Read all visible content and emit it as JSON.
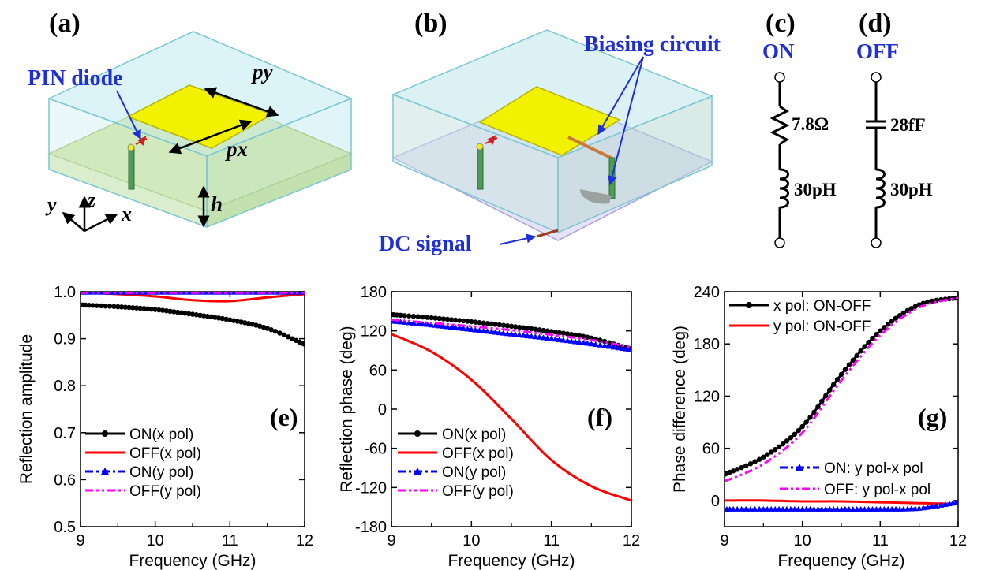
{
  "top_panels": {
    "a": {
      "label": "(a)",
      "pin_diode": "PIN diode",
      "dim_py": "py",
      "dim_px": "px",
      "dim_h": "h",
      "axis_x": "x",
      "axis_y": "y",
      "axis_z": "z"
    },
    "b": {
      "label": "(b)",
      "biasing": "Biasing circuit",
      "dc_signal": "DC signal"
    },
    "c": {
      "label": "(c)",
      "state": "ON",
      "resistor": "7.8Ω",
      "inductor": "30pH"
    },
    "d": {
      "label": "(d)",
      "state": "OFF",
      "capacitor": "28fF",
      "inductor": "30pH"
    }
  },
  "colors": {
    "on_x": "#000000",
    "off_x": "#ff0000",
    "on_y": "#0000ff",
    "off_y": "#ff00ff",
    "label_blue": "#1f2fd6",
    "substrate": "#9fdde6",
    "ground": "#d9e98a",
    "patch": "#f2f200"
  },
  "chart_data": [
    {
      "type": "line",
      "panel_label": "(e)",
      "xlabel": "Frequency (GHz)",
      "ylabel": "Reflection amplitude",
      "xlim": [
        9,
        12
      ],
      "ylim": [
        0.5,
        1.0
      ],
      "xticks": [
        "9",
        "10",
        "11",
        "12"
      ],
      "yticks": [
        "0.5",
        "0.6",
        "0.7",
        "0.8",
        "0.9",
        "1.0"
      ],
      "legend": "bottom-left",
      "x": [
        9.0,
        9.5,
        10.0,
        10.5,
        11.0,
        11.5,
        12.0
      ],
      "series": [
        {
          "name": "ON(x pol)",
          "style": "line-circle",
          "values": [
            0.972,
            0.968,
            0.962,
            0.952,
            0.94,
            0.922,
            0.888
          ]
        },
        {
          "name": "OFF(x pol)",
          "style": "line",
          "values": [
            0.998,
            0.995,
            0.99,
            0.982,
            0.98,
            0.988,
            0.995
          ]
        },
        {
          "name": "ON(y pol)",
          "style": "dashdot-triangle",
          "values": [
            0.999,
            0.999,
            0.999,
            0.999,
            0.999,
            0.999,
            0.999
          ]
        },
        {
          "name": "OFF(y pol)",
          "style": "dashdotdot",
          "values": [
            0.998,
            0.998,
            0.998,
            0.998,
            0.998,
            0.998,
            0.998
          ]
        }
      ]
    },
    {
      "type": "line",
      "panel_label": "(f)",
      "xlabel": "Frequency (GHz)",
      "ylabel": "Reflection phase (deg)",
      "xlim": [
        9,
        12
      ],
      "ylim": [
        -180,
        180
      ],
      "xticks": [
        "9",
        "10",
        "11",
        "12"
      ],
      "yticks": [
        "-180",
        "-120",
        "-60",
        "0",
        "60",
        "120",
        "180"
      ],
      "legend": "bottom-left",
      "x": [
        9.0,
        9.5,
        10.0,
        10.5,
        11.0,
        11.5,
        12.0
      ],
      "series": [
        {
          "name": "ON(x pol)",
          "style": "line-circle",
          "values": [
            145,
            140,
            134,
            127,
            119,
            109,
            92
          ]
        },
        {
          "name": "OFF(x pol)",
          "style": "line",
          "values": [
            115,
            88,
            45,
            -15,
            -78,
            -118,
            -140
          ]
        },
        {
          "name": "ON(y pol)",
          "style": "dashdot-triangle",
          "values": [
            135,
            129,
            122,
            115,
            108,
            100,
            91
          ]
        },
        {
          "name": "OFF(y pol)",
          "style": "dashdotdot",
          "values": [
            137,
            132,
            127,
            121,
            114,
            106,
            95
          ]
        }
      ]
    },
    {
      "type": "line",
      "panel_label": "(g)",
      "xlabel": "Frequency (GHz)",
      "ylabel": "Phase difference (deg)",
      "xlim": [
        9,
        12
      ],
      "ylim": [
        -30,
        240
      ],
      "xticks": [
        "9",
        "10",
        "11",
        "12"
      ],
      "yticks": [
        "0",
        "60",
        "120",
        "180",
        "240"
      ],
      "legend": "top-left / bottom-right",
      "x": [
        9.0,
        9.5,
        10.0,
        10.5,
        11.0,
        11.5,
        12.0
      ],
      "series": [
        {
          "name": "x pol: ON-OFF",
          "style": "line-circle",
          "values": [
            30,
            50,
            85,
            145,
            195,
            225,
            233
          ]
        },
        {
          "name": "y pol: ON-OFF",
          "style": "line",
          "values": [
            0,
            0,
            -1,
            -1,
            -2,
            -3,
            -4
          ]
        },
        {
          "name": "ON: y pol-x pol",
          "style": "dashdot-triangle",
          "values": [
            -10,
            -10,
            -10,
            -10,
            -10,
            -9,
            -2
          ]
        },
        {
          "name": "OFF: y pol-x pol",
          "style": "dashdotdot",
          "values": [
            22,
            42,
            78,
            138,
            190,
            222,
            233
          ]
        }
      ]
    }
  ]
}
